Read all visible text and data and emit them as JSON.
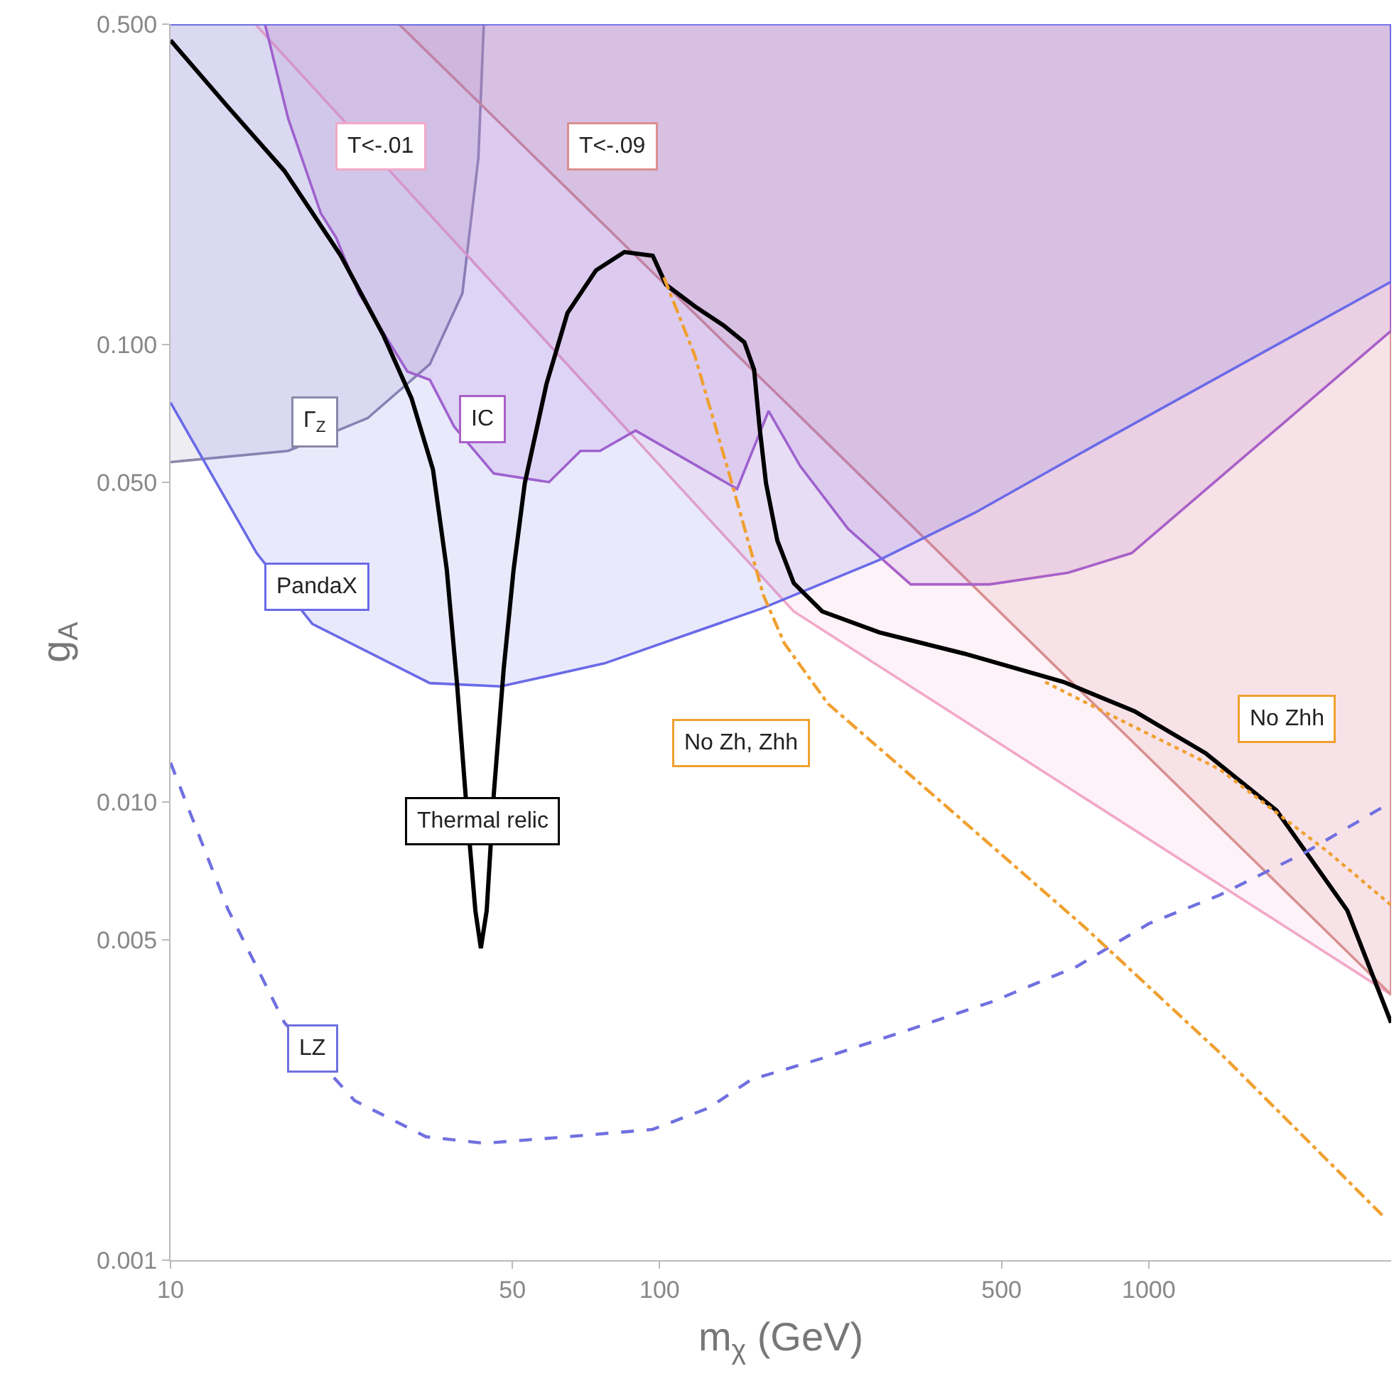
{
  "chart_data": {
    "type": "line",
    "xlabel": "m$_{χ}$ (GeV)",
    "ylabel": "g$_{A}$",
    "log": "xy",
    "legend": false,
    "xlim": [
      10,
      3130
    ],
    "xticks": [
      10,
      50,
      100,
      500,
      1000
    ],
    "ylim": [
      0.001,
      0.5
    ],
    "yticks": [
      0.001,
      0.005,
      {
        "value": 0.01,
        "label": "0.010"
      },
      {
        "value": 0.05,
        "label": "0.050"
      },
      {
        "value": 0.1,
        "label": "0.100"
      },
      {
        "value": 0.5,
        "label": "0.500"
      }
    ],
    "series": [
      {
        "type": "area",
        "name": "Γ$_{Z}$",
        "color": "#8a88a8",
        "x": [
          10,
          17.4,
          25.3,
          33.9,
          39.5,
          42.6,
          43.7,
          10
        ],
        "values": [
          0.0553,
          0.0585,
          0.069,
          0.0905,
          0.129,
          0.255,
          0.5,
          0.5
        ]
      },
      {
        "type": "area",
        "name": "T<-.01",
        "color": "#f2a8c8",
        "x": [
          14.9,
          188,
          3130,
          3130
        ],
        "values": [
          0.5,
          0.0261,
          0.0038,
          0.5
        ]
      },
      {
        "type": "area",
        "name": "T<-.09",
        "color": "#d89090",
        "x": [
          29.3,
          3130,
          3130
        ],
        "values": [
          0.5,
          0.0038,
          0.5
        ]
      },
      {
        "type": "area",
        "name": "IC",
        "color": "#a860c8",
        "x": [
          15.6,
          17.4,
          20.3,
          21.8,
          24.3,
          30.5,
          33.9,
          38.0,
          45.8,
          59.4,
          68.9,
          75.5,
          89.3,
          144,
          167,
          194,
          243,
          326,
          473,
          684,
          923,
          1849,
          3130,
          3130
        ],
        "values": [
          0.5,
          0.311,
          0.193,
          0.171,
          0.129,
          0.0872,
          0.0836,
          0.0661,
          0.0522,
          0.05,
          0.0585,
          0.0585,
          0.0648,
          0.0483,
          0.0715,
          0.0541,
          0.0395,
          0.0299,
          0.0299,
          0.0317,
          0.035,
          0.0661,
          0.107,
          0.5
        ]
      },
      {
        "type": "area",
        "name": "PandaX",
        "color": "#6a6ae8",
        "x": [
          10,
          15.0,
          19.5,
          33.9,
          47.3,
          77.1,
          162,
          281,
          440,
          796,
          3130,
          3130,
          10
        ],
        "values": [
          0.0746,
          0.035,
          0.0245,
          0.0182,
          0.0179,
          0.0201,
          0.0265,
          0.0338,
          0.0428,
          0.0611,
          0.137,
          0.5,
          0.5
        ]
      },
      {
        "name": "Thermal relic",
        "color": "#000000",
        "x": [
          10,
          13.1,
          17.1,
          22.3,
          27.2,
          31.1,
          34.4,
          36.7,
          38.5,
          40.1,
          42.0,
          43.1,
          44.3,
          45.8,
          48.0,
          50.3,
          53.0,
          58.7,
          64.8,
          74.1,
          84.7,
          96.8,
          103,
          118,
          135,
          149,
          156,
          160,
          165,
          174,
          188,
          215,
          281,
          420,
          670,
          935,
          1306,
          1824,
          2547,
          3130
        ],
        "values": [
          0.461,
          0.33,
          0.239,
          0.156,
          0.105,
          0.0762,
          0.0533,
          0.0323,
          0.0183,
          0.0104,
          0.0058,
          0.0048,
          0.0058,
          0.0104,
          0.0196,
          0.0323,
          0.0497,
          0.0819,
          0.117,
          0.145,
          0.159,
          0.156,
          0.135,
          0.121,
          0.11,
          0.101,
          0.088,
          0.0661,
          0.0497,
          0.0373,
          0.0301,
          0.0261,
          0.0235,
          0.0211,
          0.0183,
          0.0158,
          0.0128,
          0.0096,
          0.0058,
          0.0033
        ]
      },
      {
        "name": "LZ",
        "color": "#7070e0",
        "line_style": "dashed",
        "x": [
          10,
          13.1,
          17.1,
          23.8,
          33.3,
          43.8,
          64.8,
          96.8,
          126,
          154,
          215,
          322,
          479,
          713,
          1000,
          1396,
          2084,
          3130
        ],
        "values": [
          0.0122,
          0.00584,
          0.0033,
          0.00223,
          0.00186,
          0.0018,
          0.00186,
          0.00193,
          0.00215,
          0.00248,
          0.00276,
          0.00318,
          0.00367,
          0.00438,
          0.00543,
          0.00627,
          0.00776,
          0.01
        ]
      },
      {
        "name": "No Zh, Zhh",
        "color": "#f0a030",
        "line_style": "dashdot",
        "x": [
          102,
          118,
          140,
          163,
          180,
          221,
          387,
          736,
          1396,
          3010
        ],
        "values": [
          0.14,
          0.0944,
          0.0504,
          0.0283,
          0.0222,
          0.0164,
          0.00976,
          0.00536,
          0.00284,
          0.00125
        ]
      },
      {
        "name": "No Zhh",
        "color": "#f0a030",
        "line_style": "dotted",
        "x": [
          614,
          835,
          1396,
          2317,
          3130
        ],
        "values": [
          0.0183,
          0.0155,
          0.0118,
          0.00781,
          0.00596
        ]
      }
    ]
  }
}
